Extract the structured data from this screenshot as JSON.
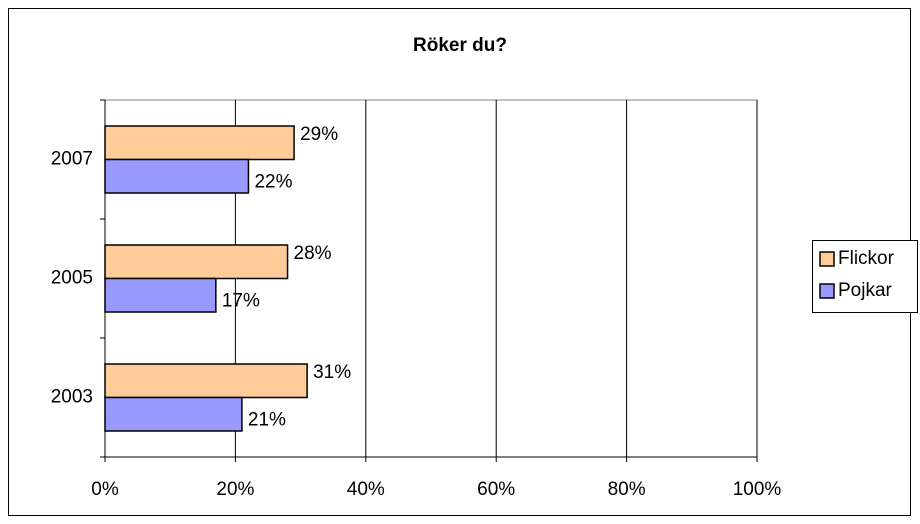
{
  "chart_data": {
    "type": "hbar",
    "title": "Röker du?",
    "categories": [
      "2003",
      "2005",
      "2007"
    ],
    "series": [
      {
        "name": "Flickor",
        "color": "#FFCC99",
        "values": [
          31,
          28,
          29
        ],
        "value_labels": [
          "31%",
          "28%",
          "29%"
        ]
      },
      {
        "name": "Pojkar",
        "color": "#9999FF",
        "values": [
          21,
          17,
          22
        ],
        "value_labels": [
          "21%",
          "17%",
          "22%"
        ]
      }
    ],
    "xlim": [
      0,
      100
    ],
    "xticks": [
      {
        "value": 0,
        "label": "0%"
      },
      {
        "value": 20,
        "label": "20%"
      },
      {
        "value": 40,
        "label": "40%"
      },
      {
        "value": 60,
        "label": "60%"
      },
      {
        "value": 80,
        "label": "80%"
      },
      {
        "value": 100,
        "label": "100%"
      }
    ],
    "grid": true,
    "legend": "right"
  }
}
